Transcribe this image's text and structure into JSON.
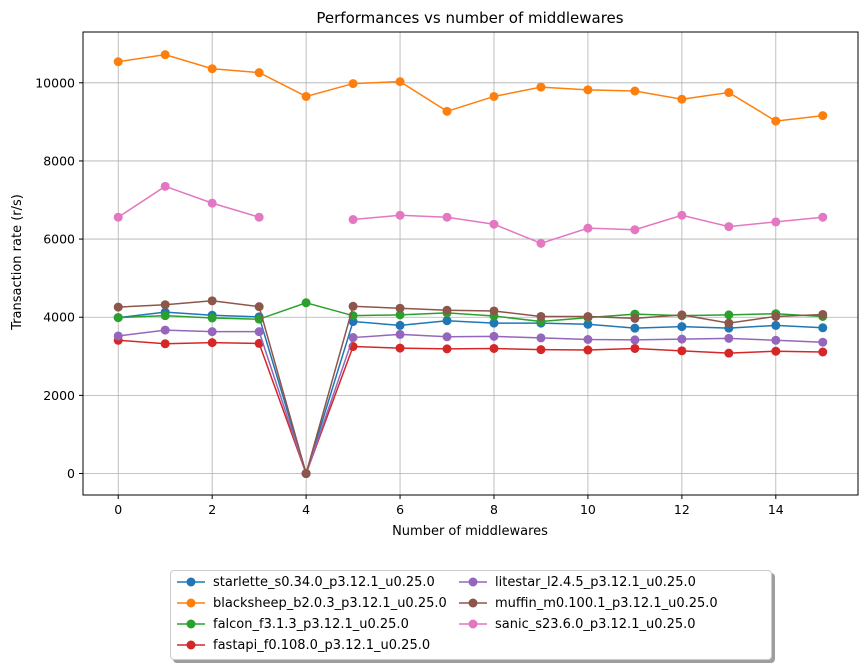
{
  "chart_data": {
    "type": "line",
    "title": "Performances vs number of middlewares",
    "xlabel": "Number of middlewares",
    "ylabel": "Transaction rate (r/s)",
    "xlim": [
      -0.75,
      15.75
    ],
    "ylim": [
      -550,
      11300
    ],
    "xticks": [
      0,
      2,
      4,
      6,
      8,
      10,
      12,
      14
    ],
    "yticks": [
      0,
      2000,
      4000,
      6000,
      8000,
      10000
    ],
    "grid": true,
    "legend_position": "bottom-center",
    "x": [
      0,
      1,
      2,
      3,
      4,
      5,
      6,
      7,
      8,
      9,
      10,
      11,
      12,
      13,
      14,
      15
    ],
    "series": [
      {
        "name": "starlette_s0.34.0_p3.12.1_u0.25.0",
        "color": "#1f77b4",
        "values": [
          3990,
          4130,
          4050,
          4010,
          0,
          3890,
          3790,
          3910,
          3850,
          3850,
          3820,
          3720,
          3760,
          3720,
          3790,
          3730
        ]
      },
      {
        "name": "blacksheep_b2.0.3_p3.12.1_u0.25.0",
        "color": "#ff7f0e",
        "values": [
          10540,
          10720,
          10360,
          10260,
          9650,
          9980,
          10030,
          9270,
          9650,
          9890,
          9820,
          9790,
          9580,
          9750,
          9020,
          9160
        ]
      },
      {
        "name": "falcon_f3.1.3_p3.12.1_u0.25.0",
        "color": "#2ca02c",
        "values": [
          3990,
          4040,
          3980,
          3950,
          4370,
          4040,
          4060,
          4110,
          4030,
          3890,
          3990,
          4080,
          4040,
          4060,
          4090,
          4020
        ]
      },
      {
        "name": "fastapi_f0.108.0_p3.12.1_u0.25.0",
        "color": "#d62728",
        "values": [
          3410,
          3320,
          3350,
          3330,
          0,
          3250,
          3210,
          3190,
          3200,
          3170,
          3160,
          3200,
          3140,
          3080,
          3130,
          3110
        ]
      },
      {
        "name": "litestar_l2.4.5_p3.12.1_u0.25.0",
        "color": "#9467bd",
        "values": [
          3520,
          3670,
          3630,
          3630,
          0,
          3480,
          3560,
          3500,
          3510,
          3470,
          3430,
          3420,
          3440,
          3460,
          3410,
          3360
        ]
      },
      {
        "name": "muffin_m0.100.1_p3.12.1_u0.25.0",
        "color": "#8c564b",
        "values": [
          4260,
          4320,
          4420,
          4270,
          0,
          4280,
          4230,
          4180,
          4160,
          4020,
          4020,
          3970,
          4060,
          3850,
          4020,
          4070
        ]
      },
      {
        "name": "sanic_s23.6.0_p3.12.1_u0.25.0",
        "color": "#e377c2",
        "values": [
          6560,
          7350,
          6920,
          6560,
          null,
          6500,
          6610,
          6560,
          6380,
          5890,
          6280,
          6240,
          6610,
          6320,
          6440,
          6560
        ]
      }
    ]
  }
}
